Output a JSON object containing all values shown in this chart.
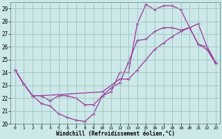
{
  "xlabel": "Windchill (Refroidissement éolien,°C)",
  "background_color": "#cce8e8",
  "grid_color": "#99bbbb",
  "line_color": "#993399",
  "xlim": [
    -0.5,
    23.5
  ],
  "ylim": [
    20,
    29.5
  ],
  "xticks": [
    0,
    1,
    2,
    3,
    4,
    5,
    6,
    7,
    8,
    9,
    10,
    11,
    12,
    13,
    14,
    15,
    16,
    17,
    18,
    19,
    20,
    21,
    22,
    23
  ],
  "yticks": [
    20,
    21,
    22,
    23,
    24,
    25,
    26,
    27,
    28,
    29
  ],
  "lines": [
    {
      "x": [
        0,
        1,
        2,
        3,
        4,
        5,
        6,
        7,
        8,
        9,
        10,
        11,
        12,
        13,
        14,
        15,
        16,
        17,
        18,
        19,
        20,
        21,
        22,
        23
      ],
      "y": [
        24.2,
        23.1,
        22.2,
        21.6,
        21.4,
        20.8,
        20.5,
        20.3,
        20.2,
        20.8,
        22.2,
        22.5,
        24.0,
        24.0,
        27.8,
        29.3,
        28.9,
        29.2,
        29.2,
        28.9,
        27.5,
        26.2,
        26.0,
        24.8
      ]
    },
    {
      "x": [
        0,
        1,
        2,
        3,
        4,
        5,
        6,
        7,
        8,
        9,
        10,
        11,
        12,
        13,
        14,
        15,
        16,
        17,
        18,
        19,
        20,
        21,
        22,
        23
      ],
      "y": [
        24.2,
        23.1,
        22.2,
        22.2,
        21.8,
        22.2,
        22.2,
        22.0,
        21.5,
        21.5,
        22.2,
        22.8,
        23.2,
        24.8,
        26.5,
        26.6,
        27.2,
        27.5,
        27.5,
        27.3,
        27.5,
        26.2,
        25.8,
        24.7
      ]
    },
    {
      "x": [
        0,
        1,
        2,
        3,
        10,
        11,
        12,
        13,
        14,
        15,
        16,
        17,
        18,
        19,
        20,
        21,
        22,
        23
      ],
      "y": [
        24.2,
        23.1,
        22.2,
        22.2,
        22.5,
        23.0,
        23.5,
        23.5,
        24.2,
        25.0,
        25.8,
        26.3,
        26.8,
        27.2,
        27.5,
        27.8,
        26.0,
        24.7
      ]
    }
  ]
}
